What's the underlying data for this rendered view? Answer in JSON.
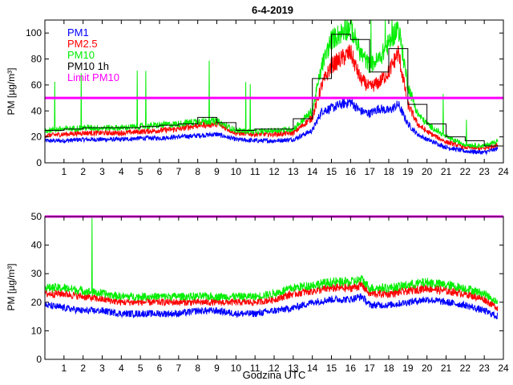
{
  "chart_data": [
    {
      "type": "line",
      "title": "6-4-2019",
      "xlabel": "",
      "ylabel": "PM [µg/m³]",
      "xlim": [
        0,
        24
      ],
      "ylim": [
        0,
        110
      ],
      "xticks": [
        1,
        2,
        3,
        4,
        5,
        6,
        7,
        8,
        9,
        10,
        11,
        12,
        13,
        14,
        15,
        16,
        17,
        18,
        19,
        20,
        21,
        22,
        23,
        24
      ],
      "yticks": [
        0,
        20,
        40,
        60,
        80,
        100
      ],
      "legend_position": "top-left",
      "series": [
        {
          "name": "PM1",
          "color": "#0000ff",
          "x": [
            0,
            1,
            2,
            3,
            4,
            5,
            6,
            7,
            8,
            9,
            10,
            11,
            12,
            13,
            14,
            14.5,
            15,
            15.5,
            16,
            16.5,
            17,
            17.5,
            18,
            18.5,
            19,
            19.5,
            20,
            21,
            22,
            23,
            23.7
          ],
          "values": [
            17,
            17,
            18,
            18,
            18,
            19,
            19,
            20,
            21,
            22,
            18,
            17,
            17,
            18,
            25,
            40,
            42,
            45,
            47,
            40,
            38,
            42,
            40,
            45,
            30,
            22,
            18,
            12,
            9,
            8,
            11
          ]
        },
        {
          "name": "PM2.5",
          "color": "#ff0000",
          "x": [
            0,
            1,
            2,
            3,
            4,
            5,
            6,
            7,
            8,
            9,
            10,
            11,
            12,
            13,
            14,
            14.5,
            15,
            15.5,
            16,
            16.5,
            17,
            17.5,
            18,
            18.5,
            19,
            19.5,
            20,
            21,
            22,
            23,
            23.7
          ],
          "values": [
            21,
            22,
            23,
            23,
            23,
            24,
            25,
            26,
            29,
            30,
            23,
            22,
            22,
            23,
            35,
            60,
            75,
            80,
            85,
            65,
            58,
            62,
            70,
            85,
            45,
            30,
            24,
            16,
            12,
            11,
            14
          ]
        },
        {
          "name": "PM10",
          "color": "#00ee00",
          "x": [
            0,
            1,
            2,
            3,
            4,
            5,
            6,
            7,
            8,
            9,
            10,
            11,
            12,
            13,
            14,
            14.5,
            15,
            15.5,
            16,
            16.5,
            17,
            17.5,
            18,
            18.5,
            19,
            19.5,
            20,
            21,
            22,
            23,
            23.7
          ],
          "values": [
            25,
            26,
            27,
            27,
            27,
            28,
            29,
            30,
            32,
            32,
            25,
            24,
            25,
            26,
            40,
            75,
            95,
            100,
            105,
            85,
            75,
            80,
            92,
            105,
            60,
            38,
            30,
            20,
            14,
            13,
            17
          ]
        },
        {
          "name": "PM10 1h",
          "color": "#000000",
          "step": true,
          "x": [
            0,
            1,
            2,
            3,
            4,
            5,
            6,
            7,
            8,
            9,
            10,
            11,
            12,
            13,
            14,
            15,
            16,
            17,
            18,
            19,
            20,
            21,
            22,
            23
          ],
          "values": [
            25,
            26,
            27,
            27,
            27,
            28,
            29,
            30,
            35,
            31,
            25,
            26,
            26,
            34,
            65,
            99,
            95,
            70,
            88,
            45,
            30,
            20,
            17,
            13
          ]
        },
        {
          "name": "Limit PM10",
          "color": "#ff00ff",
          "x": [
            0,
            24
          ],
          "values": [
            50,
            50
          ]
        }
      ]
    },
    {
      "type": "line",
      "title": "",
      "xlabel": "Godzina UTC",
      "ylabel": "PM [µg/m³]",
      "xlim": [
        0,
        24
      ],
      "ylim": [
        0,
        50
      ],
      "xticks": [
        1,
        2,
        3,
        4,
        5,
        6,
        7,
        8,
        9,
        10,
        11,
        12,
        13,
        14,
        15,
        16,
        17,
        18,
        19,
        20,
        21,
        22,
        23,
        24
      ],
      "yticks": [
        0,
        10,
        20,
        30,
        40,
        50
      ],
      "series": [
        {
          "name": "PM1",
          "color": "#0000ff",
          "x": [
            0,
            1,
            2,
            3,
            4,
            5,
            6,
            7,
            8,
            9,
            10,
            11,
            12,
            13,
            14,
            15,
            16,
            16.6,
            17,
            18,
            19,
            20,
            21,
            22,
            23,
            23.7
          ],
          "values": [
            19,
            18,
            17,
            17,
            16,
            16,
            16,
            16,
            17,
            17,
            16,
            16,
            17,
            18,
            20,
            21,
            21,
            22,
            19,
            19,
            20,
            21,
            20,
            19,
            17,
            15
          ]
        },
        {
          "name": "PM2.5",
          "color": "#ff0000",
          "x": [
            0,
            1,
            2,
            3,
            4,
            5,
            6,
            7,
            8,
            9,
            10,
            11,
            12,
            13,
            14,
            15,
            16,
            16.6,
            17,
            18,
            19,
            20,
            21,
            22,
            23,
            23.7
          ],
          "values": [
            23,
            23,
            22,
            21,
            20,
            20,
            20,
            20,
            20,
            20,
            20,
            20,
            21,
            23,
            24,
            25,
            25,
            26,
            23,
            23,
            24,
            25,
            24,
            23,
            21,
            18
          ]
        },
        {
          "name": "PM10",
          "color": "#00ee00",
          "x": [
            0,
            1,
            2,
            3,
            4,
            5,
            6,
            7,
            8,
            9,
            10,
            11,
            12,
            13,
            14,
            15,
            16,
            16.6,
            17,
            18,
            19,
            20,
            21,
            22,
            23,
            23.7
          ],
          "values": [
            25,
            25,
            24,
            23,
            22,
            22,
            22,
            22,
            22,
            22,
            22,
            22,
            23,
            25,
            26,
            27,
            27,
            28,
            25,
            25,
            26,
            27,
            26,
            25,
            23,
            20
          ]
        },
        {
          "name": "Limit PM10",
          "color": "#ff00ff",
          "x": [
            0,
            24
          ],
          "values": [
            50,
            50
          ]
        }
      ]
    }
  ]
}
